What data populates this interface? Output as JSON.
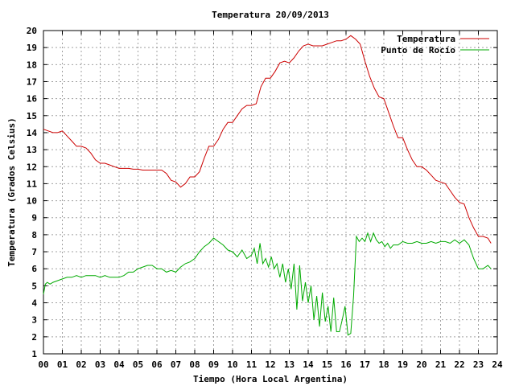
{
  "chart_data": {
    "type": "line",
    "title": "Temperatura 20/09/2013",
    "xlabel": "Tiempo (Hora Local Argentina)",
    "ylabel": "Temperatura (Grados Celsius)",
    "xlim": [
      0,
      24
    ],
    "ylim": [
      1,
      20
    ],
    "x_ticks": [
      "00",
      "01",
      "02",
      "03",
      "04",
      "05",
      "06",
      "07",
      "08",
      "09",
      "10",
      "11",
      "12",
      "13",
      "14",
      "15",
      "16",
      "17",
      "18",
      "19",
      "20",
      "21",
      "22",
      "23",
      "24"
    ],
    "y_ticks": [
      1,
      2,
      3,
      4,
      5,
      6,
      7,
      8,
      9,
      10,
      11,
      12,
      13,
      14,
      15,
      16,
      17,
      18,
      19,
      20
    ],
    "grid": true,
    "legend_position": "top-right",
    "series": [
      {
        "name": "Temperatura",
        "color": "#cc0000",
        "x": [
          0,
          0.25,
          0.5,
          0.75,
          1,
          1.25,
          1.5,
          1.75,
          2,
          2.25,
          2.5,
          2.75,
          3,
          3.25,
          3.5,
          3.75,
          4,
          4.25,
          4.5,
          4.75,
          5,
          5.25,
          5.5,
          5.75,
          6,
          6.25,
          6.5,
          6.75,
          7,
          7.25,
          7.5,
          7.75,
          8,
          8.25,
          8.5,
          8.75,
          9,
          9.25,
          9.5,
          9.75,
          10,
          10.25,
          10.5,
          10.75,
          11,
          11.25,
          11.5,
          11.75,
          12,
          12.25,
          12.5,
          12.75,
          13,
          13.25,
          13.5,
          13.75,
          14,
          14.25,
          14.5,
          14.75,
          15,
          15.25,
          15.5,
          15.75,
          16,
          16.25,
          16.5,
          16.75,
          17,
          17.25,
          17.5,
          17.75,
          18,
          18.25,
          18.5,
          18.75,
          19,
          19.25,
          19.5,
          19.75,
          20,
          20.25,
          20.5,
          20.75,
          21,
          21.25,
          21.5,
          21.75,
          22,
          22.25,
          22.5,
          22.75,
          23,
          23.25,
          23.5,
          23.67
        ],
        "values": [
          14.2,
          14.1,
          14.0,
          14.0,
          14.1,
          13.8,
          13.5,
          13.2,
          13.2,
          13.1,
          12.8,
          12.4,
          12.2,
          12.2,
          12.1,
          12.0,
          11.9,
          11.9,
          11.9,
          11.85,
          11.85,
          11.8,
          11.8,
          11.8,
          11.8,
          11.8,
          11.6,
          11.2,
          11.1,
          10.8,
          11.0,
          11.4,
          11.4,
          11.7,
          12.5,
          13.2,
          13.2,
          13.6,
          14.2,
          14.6,
          14.6,
          15.0,
          15.4,
          15.6,
          15.6,
          15.7,
          16.7,
          17.2,
          17.2,
          17.6,
          18.1,
          18.2,
          18.1,
          18.4,
          18.8,
          19.1,
          19.2,
          19.1,
          19.1,
          19.1,
          19.2,
          19.3,
          19.4,
          19.4,
          19.5,
          19.7,
          19.5,
          19.2,
          18.2,
          17.3,
          16.6,
          16.1,
          16.0,
          15.2,
          14.4,
          13.7,
          13.7,
          13.0,
          12.4,
          12.0,
          12.0,
          11.8,
          11.5,
          11.2,
          11.1,
          11.0,
          10.6,
          10.2,
          9.9,
          9.8,
          9.0,
          8.4,
          7.9,
          7.9,
          7.8,
          7.5
        ]
      },
      {
        "name": "Punto de Rocío",
        "color": "#00aa00",
        "x": [
          0,
          0.1,
          0.2,
          0.35,
          0.5,
          0.75,
          1,
          1.25,
          1.5,
          1.75,
          2,
          2.25,
          2.5,
          2.75,
          3,
          3.25,
          3.5,
          3.75,
          4,
          4.25,
          4.5,
          4.75,
          5,
          5.25,
          5.5,
          5.75,
          6,
          6.25,
          6.5,
          6.75,
          7,
          7.25,
          7.5,
          7.75,
          8,
          8.25,
          8.5,
          8.75,
          9,
          9.25,
          9.5,
          9.75,
          10,
          10.25,
          10.5,
          10.75,
          11,
          11.15,
          11.3,
          11.45,
          11.6,
          11.75,
          11.9,
          12.05,
          12.2,
          12.35,
          12.5,
          12.65,
          12.8,
          12.95,
          13.1,
          13.25,
          13.4,
          13.55,
          13.7,
          13.85,
          14,
          14.15,
          14.3,
          14.45,
          14.6,
          14.75,
          14.9,
          15.05,
          15.2,
          15.35,
          15.5,
          15.65,
          15.8,
          15.95,
          16.1,
          16.25,
          16.4,
          16.55,
          16.7,
          16.85,
          17,
          17.15,
          17.3,
          17.45,
          17.6,
          17.75,
          17.9,
          18.05,
          18.2,
          18.35,
          18.5,
          18.75,
          19,
          19.25,
          19.5,
          19.75,
          20,
          20.25,
          20.5,
          20.75,
          21,
          21.25,
          21.5,
          21.75,
          22,
          22.25,
          22.5,
          22.75,
          23,
          23.25,
          23.5,
          23.67
        ],
        "values": [
          4.5,
          5.1,
          5.2,
          5.1,
          5.2,
          5.3,
          5.4,
          5.5,
          5.5,
          5.6,
          5.5,
          5.6,
          5.6,
          5.6,
          5.5,
          5.6,
          5.5,
          5.5,
          5.5,
          5.6,
          5.8,
          5.8,
          6.0,
          6.1,
          6.2,
          6.2,
          6.0,
          6.0,
          5.8,
          5.9,
          5.8,
          6.1,
          6.3,
          6.4,
          6.6,
          7.0,
          7.3,
          7.5,
          7.8,
          7.6,
          7.4,
          7.1,
          7.0,
          6.7,
          7.1,
          6.6,
          6.8,
          7.2,
          6.3,
          7.5,
          6.3,
          6.6,
          6.1,
          6.7,
          6.0,
          6.3,
          5.5,
          6.3,
          5.2,
          6.0,
          4.8,
          6.3,
          3.6,
          6.2,
          4.1,
          5.2,
          4.0,
          5.0,
          3.0,
          4.4,
          2.6,
          4.6,
          2.9,
          3.8,
          2.3,
          4.3,
          2.3,
          2.3,
          3.0,
          3.8,
          2.1,
          2.2,
          4.4,
          7.9,
          7.6,
          7.8,
          7.6,
          8.1,
          7.6,
          8.1,
          7.7,
          7.5,
          7.6,
          7.3,
          7.5,
          7.2,
          7.4,
          7.4,
          7.6,
          7.5,
          7.5,
          7.6,
          7.5,
          7.5,
          7.6,
          7.5,
          7.6,
          7.6,
          7.5,
          7.7,
          7.5,
          7.7,
          7.4,
          6.6,
          6.0,
          6.0,
          6.2,
          6.0
        ]
      }
    ]
  }
}
